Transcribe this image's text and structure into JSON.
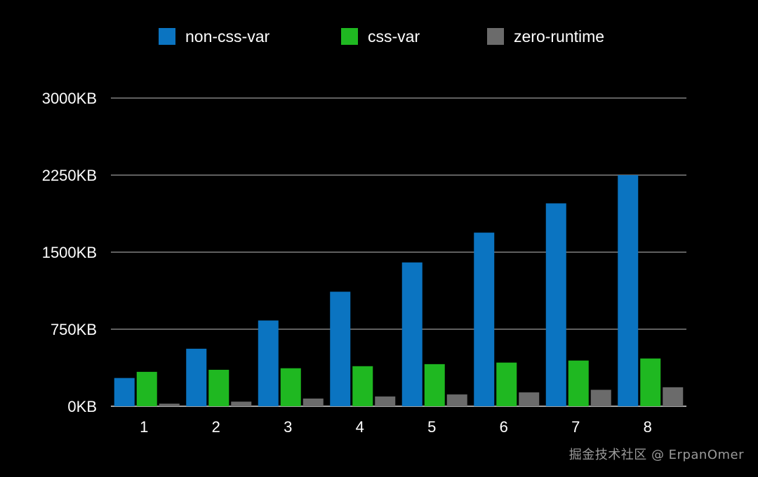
{
  "chart_data": {
    "type": "bar",
    "categories": [
      "1",
      "2",
      "3",
      "4",
      "5",
      "6",
      "7",
      "8"
    ],
    "series": [
      {
        "name": "non-css-var",
        "color": "#0b74c1",
        "values": [
          275,
          560,
          835,
          1115,
          1400,
          1690,
          1975,
          2250
        ]
      },
      {
        "name": "css-var",
        "color": "#1fb821",
        "values": [
          335,
          355,
          370,
          390,
          410,
          425,
          445,
          465
        ]
      },
      {
        "name": "zero-runtime",
        "color": "#6b6b6b",
        "values": [
          25,
          45,
          75,
          95,
          115,
          135,
          160,
          185
        ]
      }
    ],
    "y_ticks": [
      {
        "value": 0,
        "label": "0KB"
      },
      {
        "value": 750,
        "label": "750KB"
      },
      {
        "value": 1500,
        "label": "1500KB"
      },
      {
        "value": 2250,
        "label": "2250KB"
      },
      {
        "value": 3000,
        "label": "3000KB"
      }
    ],
    "ylim": [
      0,
      3000
    ],
    "grid": true,
    "legend_position": "top-center",
    "title": "",
    "xlabel": "",
    "ylabel": ""
  },
  "watermark": "掘金技术社区 @ ErpanOmer",
  "colors": {
    "background": "#000000",
    "text": "#ffffff",
    "grid": "#bfbfbf",
    "watermark": "#9a9a9a"
  }
}
